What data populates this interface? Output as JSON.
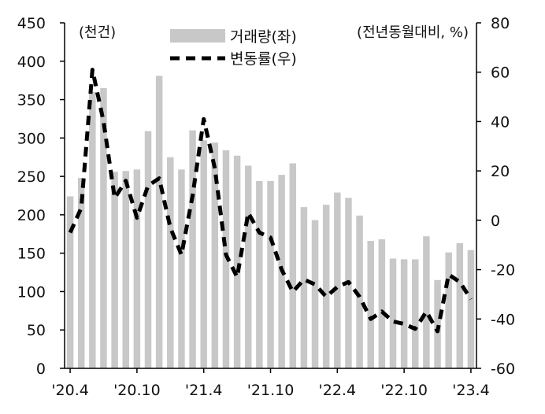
{
  "chart_data": {
    "type": "bar+line",
    "title": "",
    "left_unit_label": "(천건)",
    "right_unit_label": "(전년동월대비, %)",
    "y_left": {
      "min": 0,
      "max": 450,
      "ticks": [
        0,
        50,
        100,
        150,
        200,
        250,
        300,
        350,
        400,
        450
      ]
    },
    "y_right": {
      "min": -60,
      "max": 80,
      "ticks": [
        -60,
        -40,
        -20,
        0,
        20,
        40,
        60,
        80
      ]
    },
    "x_tick_labels": [
      {
        "index": 0,
        "label": "'20.4"
      },
      {
        "index": 6,
        "label": "'20.10"
      },
      {
        "index": 12,
        "label": "'21.4"
      },
      {
        "index": 18,
        "label": "'21.10"
      },
      {
        "index": 24,
        "label": "'22.4"
      },
      {
        "index": 30,
        "label": "'22.10"
      },
      {
        "index": 36,
        "label": "'23.4"
      }
    ],
    "legend": {
      "position": "top-center"
    },
    "series": [
      {
        "name": "거래량(좌)",
        "type": "bar",
        "axis": "left",
        "color": "#c8c8c8",
        "values": [
          224,
          248,
          360,
          365,
          256,
          257,
          259,
          309,
          381,
          275,
          259,
          310,
          297,
          294,
          284,
          277,
          264,
          244,
          244,
          252,
          267,
          210,
          193,
          213,
          229,
          222,
          199,
          166,
          168,
          143,
          142,
          142,
          172,
          115,
          151,
          163,
          154
        ]
      },
      {
        "name": "변동률(우)",
        "type": "line",
        "axis": "right",
        "style": "dashed",
        "color": "#000000",
        "values": [
          -5,
          5,
          61,
          40,
          9,
          16,
          1,
          14,
          17,
          -3,
          -14,
          10,
          41,
          21,
          -14,
          -23,
          3,
          -5,
          -7,
          -20,
          -29,
          -24,
          -26,
          -31,
          -27,
          -25,
          -31,
          -40,
          -37,
          -41,
          -42,
          -44,
          -37,
          -45,
          -22,
          -25,
          -32
        ]
      }
    ]
  }
}
